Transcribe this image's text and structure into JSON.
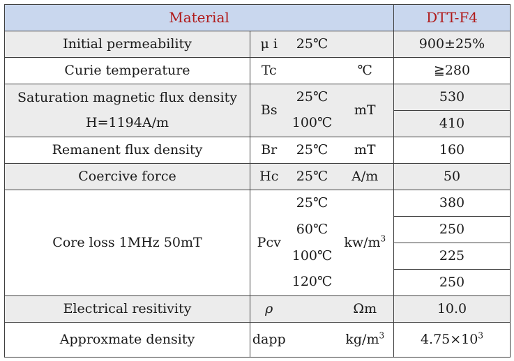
{
  "header": {
    "material": "Material",
    "grade": "DTT-F4"
  },
  "rows": {
    "permeability": {
      "name": "Initial permeability",
      "symbol": "μ i",
      "cond": "25℃",
      "unit": "",
      "value": "900±25%"
    },
    "curie": {
      "name": "Curie temperature",
      "symbol": "Tc",
      "cond": "",
      "unit": "℃",
      "value": "≧280"
    },
    "saturation": {
      "name": "Saturation magnetic flux density",
      "sub": "H=1194A/m",
      "symbol": "Bs",
      "cond1": "25℃",
      "cond2": "100℃",
      "unit": "mT",
      "value1": "530",
      "value2": "410"
    },
    "remanent": {
      "name": "Remanent flux density",
      "symbol": "Br",
      "cond": "25℃",
      "unit": "mT",
      "value": "160"
    },
    "coercive": {
      "name": "Coercive force",
      "symbol": "Hc",
      "cond": "25℃",
      "unit": "A/m",
      "value": "50"
    },
    "coreloss": {
      "name": "Core loss  1MHz 50mT",
      "symbol": "Pcv",
      "conds": [
        "25℃",
        "60℃",
        "100℃",
        "120℃"
      ],
      "unit_base": "kw/m",
      "unit_exp": "3",
      "values": [
        "380",
        "250",
        "225",
        "250"
      ]
    },
    "resistivity": {
      "name": "Electrical resitivity",
      "symbol": "ρ",
      "cond": "",
      "unit": "Ωm",
      "value": "10.0"
    },
    "density": {
      "name": "Approxmate density",
      "symbol": "dapp",
      "cond": "",
      "unit_base": "kg/m",
      "unit_exp": "3",
      "value_base": "4.75×10",
      "value_exp": "3"
    }
  }
}
